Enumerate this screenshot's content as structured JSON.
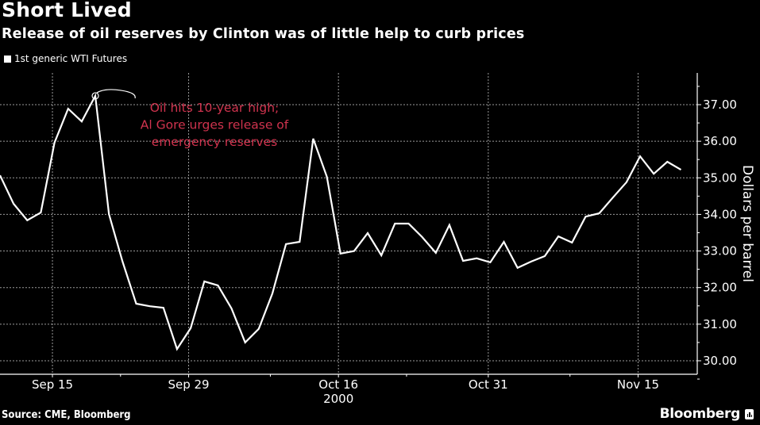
{
  "chart_data": {
    "type": "line",
    "title": "Short Lived",
    "subtitle": "Release of oil reserves by Clinton was of little help to curb prices",
    "legend": [
      "1st generic WTI Futures"
    ],
    "legend_position": "top-left",
    "ylabel": "Dollars per barrel",
    "xlabel": "",
    "ylim": [
      29.6,
      37.6
    ],
    "yticks": [
      30,
      31,
      32,
      33,
      34,
      35,
      36,
      37
    ],
    "ytick_labels": [
      "30.00",
      "31.00",
      "32.00",
      "33.00",
      "34.00",
      "35.00",
      "36.00",
      "37.00"
    ],
    "x_major_ticks": [
      {
        "index": 3.85,
        "label": "Sep 15"
      },
      {
        "index": 13.85,
        "label": "Sep 29"
      },
      {
        "index": 24.85,
        "label": "Oct 16",
        "sublabel": "2000"
      },
      {
        "index": 35.85,
        "label": "Oct 31"
      },
      {
        "index": 46.85,
        "label": "Nov 15"
      }
    ],
    "x_minor_ticks": [
      8.85,
      19.85,
      29.85,
      41.85
    ],
    "x_range": [
      0,
      50.6
    ],
    "grid": true,
    "series": [
      {
        "name": "1st generic WTI Futures",
        "color": "#ffffff",
        "values": [
          35.07,
          34.29,
          33.84,
          34.05,
          35.96,
          36.89,
          36.54,
          37.24,
          34.01,
          32.71,
          31.56,
          31.49,
          31.45,
          30.32,
          30.89,
          32.17,
          32.06,
          31.43,
          30.5,
          30.87,
          31.84,
          33.19,
          33.25,
          36.07,
          35.03,
          32.93,
          33.0,
          33.49,
          32.88,
          33.75,
          33.75,
          33.38,
          32.95,
          33.71,
          32.73,
          32.8,
          32.69,
          33.25,
          32.54,
          32.71,
          32.86,
          33.4,
          33.23,
          33.94,
          34.03,
          34.46,
          34.88,
          35.59,
          35.11,
          35.44,
          35.22
        ]
      }
    ],
    "annotations": [
      {
        "point_index": 7,
        "lines": [
          "Oil hits 10-year high;",
          "Al Gore urges release of",
          "emergency reserves"
        ],
        "color": "#d0334e"
      }
    ],
    "source": "Source: CME, Bloomberg",
    "brand": "Bloomberg"
  }
}
